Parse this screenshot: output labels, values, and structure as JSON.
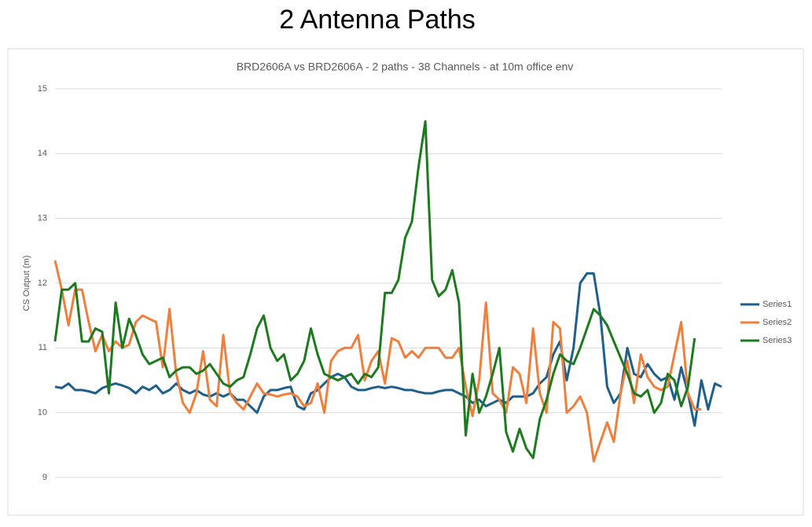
{
  "header": {
    "title": "2 Antenna Paths"
  },
  "chart_data": {
    "type": "line",
    "title": "BRD2606A vs BRD2606A - 2 paths - 38 Channels - at 10m office env",
    "ylabel": "CS Output (m)",
    "categories": [
      null,
      null,
      null,
      null,
      null,
      null,
      null,
      null,
      null,
      null,
      null,
      null,
      null,
      null,
      null,
      null,
      null,
      null,
      null,
      null,
      null,
      null,
      null,
      null,
      null,
      null,
      null,
      null,
      null,
      null,
      null,
      null,
      null,
      null,
      null,
      null,
      null,
      null,
      null,
      null,
      null,
      null,
      null,
      null,
      null,
      null,
      null,
      null,
      null,
      null,
      null,
      null,
      null,
      null,
      null,
      null,
      null,
      null,
      null,
      null,
      null,
      null,
      null,
      null,
      null,
      null,
      null,
      null,
      null,
      null,
      null,
      null,
      null,
      null,
      null,
      null,
      null,
      null,
      null,
      null,
      null,
      null,
      null,
      null,
      null,
      null,
      null,
      null,
      null,
      null,
      null,
      null,
      null,
      null,
      null,
      null,
      null,
      null,
      null,
      null
    ],
    "ylim": [
      9,
      15
    ],
    "yticks": [
      9,
      10,
      11,
      12,
      13,
      14,
      15
    ],
    "grid": true,
    "legend": "right",
    "series": [
      {
        "name": "Series1",
        "color": "#1f5f8b",
        "values": [
          10.4,
          10.38,
          10.45,
          10.35,
          10.35,
          10.33,
          10.3,
          10.38,
          10.42,
          10.45,
          10.42,
          10.38,
          10.3,
          10.4,
          10.35,
          10.42,
          10.3,
          10.35,
          10.45,
          10.35,
          10.3,
          10.35,
          10.28,
          10.25,
          10.3,
          10.25,
          10.3,
          10.2,
          10.2,
          10.1,
          10.0,
          10.25,
          10.35,
          10.35,
          10.38,
          10.4,
          10.1,
          10.05,
          10.3,
          10.35,
          10.45,
          10.55,
          10.6,
          10.55,
          10.4,
          10.35,
          10.35,
          10.38,
          10.4,
          10.38,
          10.4,
          10.38,
          10.35,
          10.35,
          10.32,
          10.3,
          10.3,
          10.33,
          10.35,
          10.35,
          10.3,
          10.25,
          10.15,
          10.2,
          10.1,
          10.15,
          10.2,
          10.15,
          10.25,
          10.25,
          10.25,
          10.3,
          10.45,
          10.55,
          10.9,
          11.1,
          10.5,
          11.0,
          12.0,
          12.15,
          12.15,
          11.5,
          10.4,
          10.15,
          10.3,
          11.0,
          10.6,
          10.55,
          10.75,
          10.6,
          10.5,
          10.55,
          10.2,
          10.7,
          10.3,
          9.8,
          10.5,
          10.05,
          10.45,
          10.4
        ]
      },
      {
        "name": "Series2",
        "color": "#f07f3c",
        "values": [
          12.35,
          11.9,
          11.35,
          11.9,
          11.9,
          11.4,
          10.95,
          11.2,
          10.95,
          11.1,
          11.0,
          11.05,
          11.4,
          11.5,
          11.45,
          11.4,
          10.7,
          11.6,
          10.6,
          10.15,
          10.0,
          10.3,
          10.95,
          10.2,
          10.1,
          11.2,
          10.3,
          10.15,
          10.05,
          10.25,
          10.45,
          10.3,
          10.28,
          10.25,
          10.28,
          10.3,
          10.25,
          10.1,
          10.15,
          10.45,
          10.0,
          10.8,
          10.95,
          11.0,
          11.0,
          11.2,
          10.5,
          10.8,
          10.95,
          10.45,
          11.15,
          11.1,
          10.85,
          10.95,
          10.85,
          11.0,
          11.0,
          11.0,
          10.85,
          10.85,
          11.0,
          10.4,
          9.95,
          10.5,
          11.7,
          10.3,
          10.2,
          10.0,
          10.7,
          10.6,
          10.15,
          11.3,
          10.3,
          10.0,
          11.4,
          11.3,
          10.0,
          10.1,
          10.25,
          10.0,
          9.25,
          9.55,
          9.85,
          9.55,
          10.3,
          10.8,
          10.15,
          10.9,
          10.55,
          10.4,
          10.35,
          10.4,
          10.9,
          11.4,
          10.3,
          10.05,
          10.05,
          null,
          null,
          null
        ]
      },
      {
        "name": "Series3",
        "color": "#1e7a1e",
        "values": [
          11.1,
          11.9,
          11.9,
          12.0,
          11.1,
          11.1,
          11.3,
          11.25,
          10.3,
          11.7,
          11.0,
          11.45,
          11.2,
          10.9,
          10.75,
          10.8,
          10.85,
          10.55,
          10.65,
          10.7,
          10.7,
          10.6,
          10.65,
          10.75,
          10.6,
          10.45,
          10.4,
          10.5,
          10.55,
          10.9,
          11.3,
          11.5,
          11.0,
          10.8,
          10.9,
          10.5,
          10.6,
          10.8,
          11.3,
          10.9,
          10.6,
          10.55,
          10.5,
          10.55,
          10.6,
          10.45,
          10.6,
          10.55,
          10.7,
          11.85,
          11.85,
          12.05,
          12.7,
          12.95,
          13.8,
          14.5,
          12.05,
          11.8,
          11.9,
          12.2,
          11.7,
          9.65,
          10.6,
          10.0,
          10.25,
          10.6,
          11.0,
          9.7,
          9.4,
          9.75,
          9.45,
          9.3,
          9.9,
          10.2,
          10.6,
          10.9,
          10.8,
          10.75,
          11.0,
          11.3,
          11.6,
          11.5,
          11.35,
          11.1,
          10.85,
          10.6,
          10.3,
          10.25,
          10.35,
          10.0,
          10.15,
          10.6,
          10.5,
          10.1,
          10.4,
          11.15,
          null,
          null,
          null,
          null
        ]
      }
    ]
  }
}
